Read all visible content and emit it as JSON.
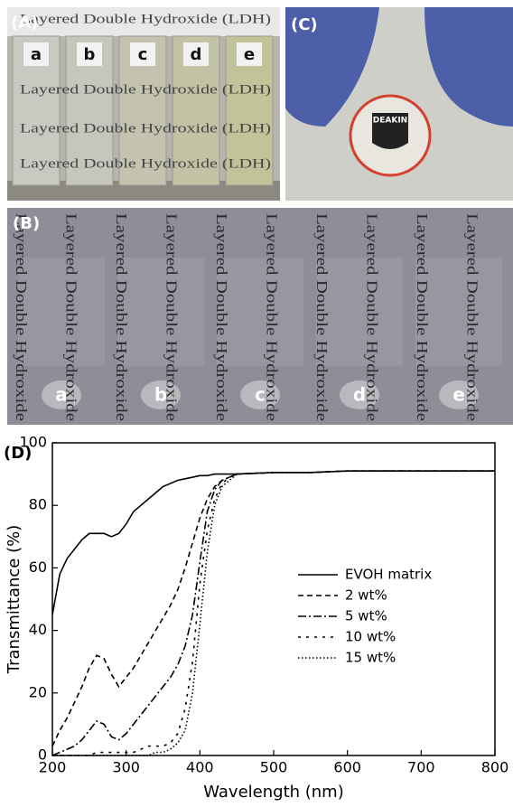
{
  "panel_a": {
    "label": "(A)",
    "vials": [
      "a",
      "b",
      "c",
      "d",
      "e"
    ],
    "photo_text": "Layered Double Hydroxide (LDH)"
  },
  "panel_b": {
    "label": "(B)",
    "films": [
      "a",
      "b",
      "c",
      "d",
      "e"
    ],
    "photo_text": "Layered Double Hydroxide"
  },
  "panel_c": {
    "label": "(C)",
    "logo_text": "DEAKIN"
  },
  "chart_data": {
    "type": "line",
    "label": "(D)",
    "xlabel": "Wavelength (nm)",
    "ylabel": "Transmittance (%)",
    "xlim": [
      200,
      800
    ],
    "ylim": [
      0,
      100
    ],
    "xticks": [
      200,
      300,
      400,
      500,
      600,
      700,
      800
    ],
    "yticks": [
      0,
      20,
      40,
      60,
      80,
      100
    ],
    "legend": "center right",
    "x": [
      200,
      210,
      220,
      230,
      240,
      250,
      260,
      270,
      280,
      290,
      300,
      310,
      320,
      330,
      340,
      350,
      360,
      370,
      380,
      390,
      400,
      410,
      420,
      430,
      440,
      450,
      500,
      550,
      600,
      650,
      700,
      750,
      800
    ],
    "series": [
      {
        "name": "EVOH matrix",
        "color": "#000000",
        "line_style": "solid",
        "values": [
          45,
          58,
          63,
          66,
          69,
          71,
          71,
          71,
          70,
          71,
          74,
          78,
          80,
          82,
          84,
          86,
          87,
          88,
          88.5,
          89,
          89.5,
          89.5,
          90,
          90,
          90,
          90,
          90.5,
          90.5,
          91,
          91,
          91,
          91,
          91
        ]
      },
      {
        "name": "2 wt%",
        "color": "#000000",
        "line_style": "dashed",
        "values": [
          3,
          8,
          12,
          17,
          22,
          28,
          32,
          31,
          26,
          22,
          25,
          28,
          32,
          36,
          40,
          44,
          48,
          53,
          60,
          68,
          76,
          82,
          86,
          88,
          89,
          90,
          90.5,
          90.5,
          91,
          91,
          91,
          91,
          91
        ]
      },
      {
        "name": "5 wt%",
        "color": "#000000",
        "line_style": "dashdot",
        "values": [
          0,
          1,
          2,
          3,
          5,
          8,
          11,
          10,
          6,
          5,
          7,
          10,
          13,
          16,
          19,
          22,
          25,
          29,
          35,
          45,
          62,
          78,
          85,
          88,
          89,
          90,
          90.5,
          90.5,
          91,
          91,
          91,
          91,
          91
        ]
      },
      {
        "name": "10 wt%",
        "color": "#000000",
        "line_style": "sparse-dashed",
        "values": [
          0,
          0,
          0,
          0,
          0,
          0,
          1,
          1,
          1,
          1,
          1,
          1,
          2,
          3,
          3,
          3,
          4,
          7,
          15,
          30,
          55,
          72,
          82,
          87,
          89,
          90,
          90.5,
          90.5,
          91,
          91,
          91,
          91,
          91
        ]
      },
      {
        "name": "15 wt%",
        "color": "#000000",
        "line_style": "dotted",
        "values": [
          0,
          0,
          0,
          0,
          0,
          0,
          0,
          0,
          0,
          0,
          0,
          0,
          0,
          0,
          1,
          1,
          2,
          4,
          8,
          20,
          42,
          65,
          80,
          86,
          88,
          90,
          90.5,
          90.5,
          91,
          91,
          91,
          91,
          91
        ]
      }
    ]
  }
}
